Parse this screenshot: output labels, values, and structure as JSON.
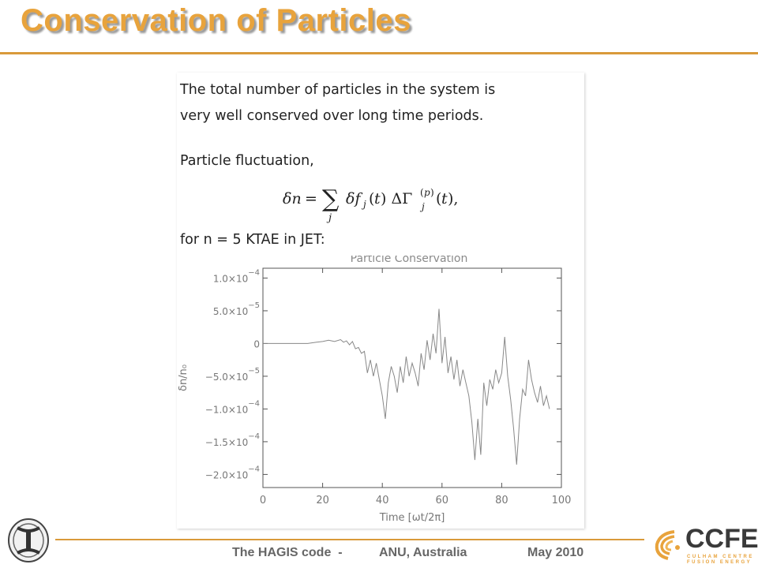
{
  "slide": {
    "title": "Conservation of Particles"
  },
  "content": {
    "intro_line1": "The total number of particles in the system is",
    "intro_line2": "very well conserved over long time periods.",
    "fluctuation_label": "Particle fluctuation,",
    "case_label": "for n = 5 KTAE in JET:"
  },
  "chart_data": {
    "type": "line",
    "title": "Particle Conservation",
    "xlabel": "Time [ωt/2π]",
    "ylabel": "δn/n₀",
    "xlim": [
      0,
      100
    ],
    "ylim": [
      -0.00022,
      0.000115
    ],
    "x_ticks": [
      0,
      20,
      40,
      60,
      80,
      100
    ],
    "x_tick_labels": [
      "0",
      "20",
      "40",
      "60",
      "80",
      "100"
    ],
    "y_ticks": [
      0.0001,
      5e-05,
      0,
      -5e-05,
      -0.0001,
      -0.00015,
      -0.0002
    ],
    "y_tick_labels": [
      {
        "mant": "1.0×10",
        "exp": "−4"
      },
      {
        "mant": "5.0×10",
        "exp": "−5"
      },
      {
        "mant": "0",
        "exp": ""
      },
      {
        "mant": "−5.0×10",
        "exp": "−5"
      },
      {
        "mant": "−1.0×10",
        "exp": "−4"
      },
      {
        "mant": "−1.5×10",
        "exp": "−4"
      },
      {
        "mant": "−2.0×10",
        "exp": "−4"
      }
    ],
    "grid": false,
    "line_color": "#888888",
    "series": [
      {
        "x": [
          0,
          10,
          15,
          18,
          20,
          22,
          24,
          26,
          27,
          28,
          29,
          30,
          31,
          32,
          33,
          34,
          35,
          36,
          37,
          38,
          39,
          40,
          41,
          42,
          43,
          44,
          45,
          46,
          47,
          48,
          49,
          50,
          51,
          52,
          53,
          54,
          55,
          56,
          57,
          58,
          59,
          60,
          61,
          62,
          63,
          64,
          65,
          66,
          67,
          68,
          69,
          70,
          71,
          72,
          73,
          74,
          75,
          76,
          77,
          78,
          79,
          80,
          81,
          82,
          83,
          84,
          85,
          86,
          87,
          88,
          89,
          90,
          91,
          92,
          93,
          94,
          95,
          96
        ],
        "y": [
          0,
          0,
          0,
          2e-06,
          3e-06,
          5e-06,
          3e-06,
          6e-06,
          2e-06,
          4e-06,
          -2e-06,
          3e-06,
          -8e-06,
          -6e-06,
          -1.5e-05,
          -1.2e-05,
          -4.5e-05,
          -2.5e-05,
          -5e-05,
          -3e-05,
          -5.5e-05,
          -8e-05,
          -0.000115,
          -6e-05,
          -3.5e-05,
          -5e-05,
          -7.5e-05,
          -3.5e-05,
          -6e-05,
          -2e-05,
          -5e-05,
          -3e-05,
          -4.5e-05,
          -6.5e-05,
          -1.5e-05,
          -4e-05,
          5e-06,
          -2.5e-05,
          1.5e-05,
          -1.5e-05,
          5.3e-05,
          -3e-05,
          1e-05,
          -4.5e-05,
          -2e-05,
          -5.5e-05,
          -2.5e-05,
          -6.5e-05,
          -4e-05,
          -6e-05,
          -8e-05,
          -0.00012,
          -0.000178,
          -0.000115,
          -0.00017,
          -6e-05,
          -9.5e-05,
          -5.5e-05,
          -7e-05,
          -4e-05,
          -6e-05,
          -4.5e-05,
          1e-05,
          -5e-05,
          -8.5e-05,
          -0.00013,
          -0.000185,
          -0.000115,
          -7e-05,
          -8e-05,
          -2.5e-05,
          -5.5e-05,
          -7.5e-05,
          -9e-05,
          -6.5e-05,
          -9.5e-05,
          -8e-05,
          -0.0001
        ]
      }
    ]
  },
  "footer": {
    "project": "The HAGIS code  -",
    "institution": "ANU, Australia",
    "date": "May 2010"
  },
  "logos": {
    "right_name": "CCFE",
    "right_sub1": "CULHAM CENTRE",
    "right_sub2": "FUSION ENERGY",
    "accent_color": "#e8a33c"
  }
}
